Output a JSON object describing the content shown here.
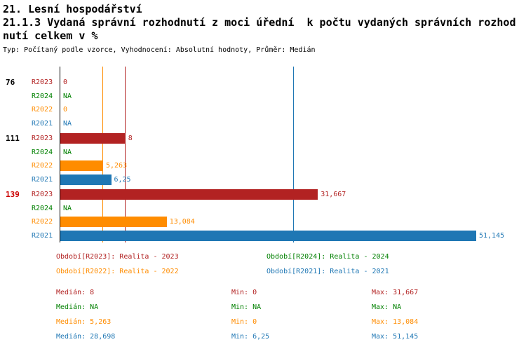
{
  "header": {
    "line1": "21. Lesní hospodářství",
    "line2": "21.1.3 Vydaná správní rozhodnutí z moci úřední  k počtu vydaných správních rozhod",
    "line3": "nutí celkem v %",
    "subtitle": "Typ: Počítaný podle vzorce, Vyhodnocení: Absolutní hodnoty, Průměr: Medián"
  },
  "colors": {
    "r2023": "#b22222",
    "r2024": "#008000",
    "r2022": "#ff8c00",
    "r2021": "#1f77b4",
    "highlight": "#cc0000",
    "axis": "#000000"
  },
  "chart_data": {
    "type": "bar",
    "orientation": "horizontal",
    "title": "21.1.3 Vydaná správní rozhodnutí z moci úřední k počtu vydaných správních rozhodnutí celkem v %",
    "xlabel": "",
    "ylabel": "",
    "xlim": [
      0,
      51.145
    ],
    "grid": false,
    "series_order": [
      "R2023",
      "R2024",
      "R2022",
      "R2021"
    ],
    "groups": [
      {
        "id": "76",
        "highlighted": false,
        "rows": [
          {
            "series": "R2023",
            "value": 0,
            "label": "0"
          },
          {
            "series": "R2024",
            "value": null,
            "label": "NA"
          },
          {
            "series": "R2022",
            "value": 0,
            "label": "0"
          },
          {
            "series": "R2021",
            "value": null,
            "label": "NA"
          }
        ]
      },
      {
        "id": "111",
        "highlighted": false,
        "rows": [
          {
            "series": "R2023",
            "value": 8,
            "label": "8"
          },
          {
            "series": "R2024",
            "value": null,
            "label": "NA"
          },
          {
            "series": "R2022",
            "value": 5.263,
            "label": "5,263"
          },
          {
            "series": "R2021",
            "value": 6.25,
            "label": "6,25"
          }
        ]
      },
      {
        "id": "139",
        "highlighted": true,
        "rows": [
          {
            "series": "R2023",
            "value": 31.667,
            "label": "31,667"
          },
          {
            "series": "R2024",
            "value": null,
            "label": "NA"
          },
          {
            "series": "R2022",
            "value": 13.084,
            "label": "13,084"
          },
          {
            "series": "R2021",
            "value": 51.145,
            "label": "51,145"
          }
        ]
      }
    ],
    "median_lines": [
      {
        "series": "R2023",
        "value": 8
      },
      {
        "series": "R2022",
        "value": 5.263
      },
      {
        "series": "R2021",
        "value": 28.698
      }
    ]
  },
  "legend": [
    {
      "series": "R2023",
      "label": "Období[R2023]: Realita - 2023"
    },
    {
      "series": "R2024",
      "label": "Období[R2024]: Realita - 2024"
    },
    {
      "series": "R2022",
      "label": "Období[R2022]: Realita - 2022"
    },
    {
      "series": "R2021",
      "label": "Období[R2021]: Realita - 2021"
    }
  ],
  "stats": [
    {
      "series": "R2023",
      "median": "Medián: 8",
      "min": "Min: 0",
      "max": "Max: 31,667"
    },
    {
      "series": "R2024",
      "median": "Medián: NA",
      "min": "Min: NA",
      "max": "Max: NA"
    },
    {
      "series": "R2022",
      "median": "Medián: 5,263",
      "min": "Min: 0",
      "max": "Max: 13,084"
    },
    {
      "series": "R2021",
      "median": "Medián: 28,698",
      "min": "Min: 6,25",
      "max": "Max: 51,145"
    }
  ]
}
